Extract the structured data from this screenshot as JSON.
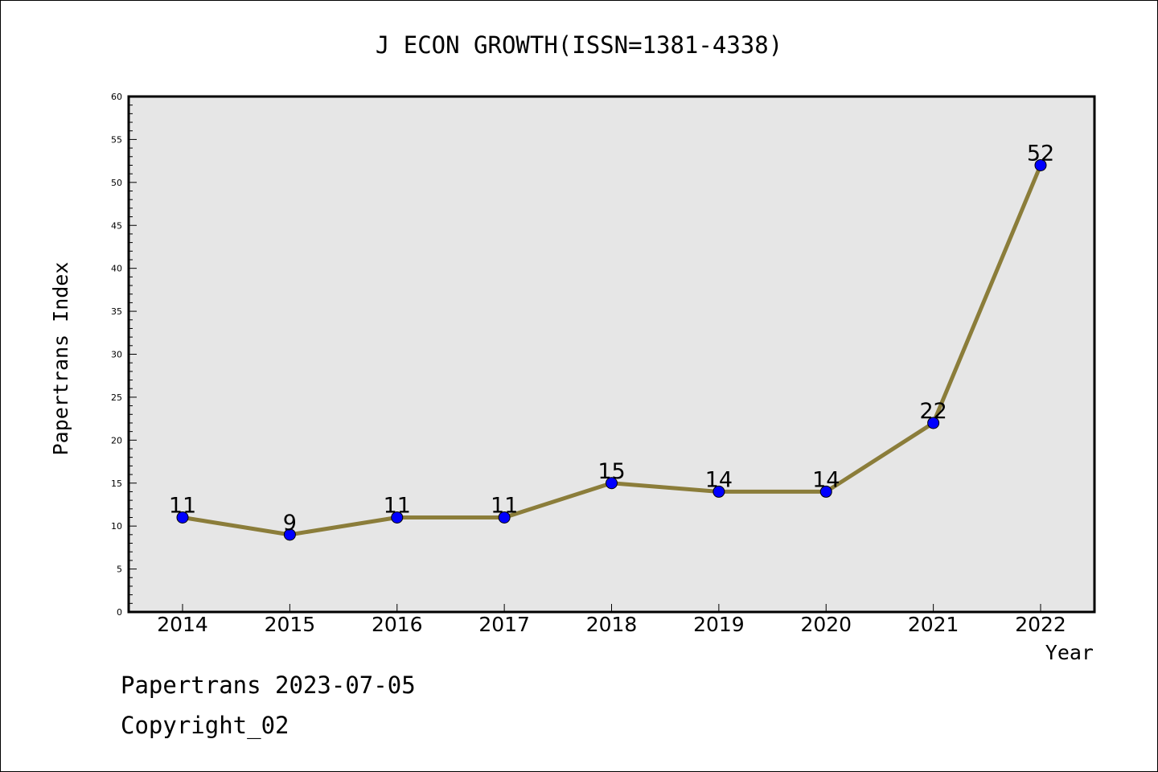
{
  "chart_data": {
    "type": "line",
    "title": "J ECON GROWTH(ISSN=1381-4338)",
    "xlabel": "Year",
    "ylabel": "Papertrans Index",
    "categories": [
      "2014",
      "2015",
      "2016",
      "2017",
      "2018",
      "2019",
      "2020",
      "2021",
      "2022"
    ],
    "values": [
      11,
      9,
      11,
      11,
      15,
      14,
      14,
      22,
      52
    ],
    "data_labels": [
      "11",
      "9",
      "11",
      "11",
      "15",
      "14",
      "14",
      "22",
      "52"
    ],
    "ylim": [
      0,
      60
    ],
    "y_major_ticks": [
      0,
      5,
      10,
      15,
      20,
      25,
      30,
      35,
      40,
      45,
      50,
      55,
      60
    ],
    "y_minor_step": 1,
    "grid": false,
    "line_color": "#8b7d3a",
    "marker_color": "#0000ff",
    "plot_background": "#e6e6e6"
  },
  "footer": {
    "line1": "Papertrans 2023-07-05",
    "line2": "Copyright_02"
  }
}
